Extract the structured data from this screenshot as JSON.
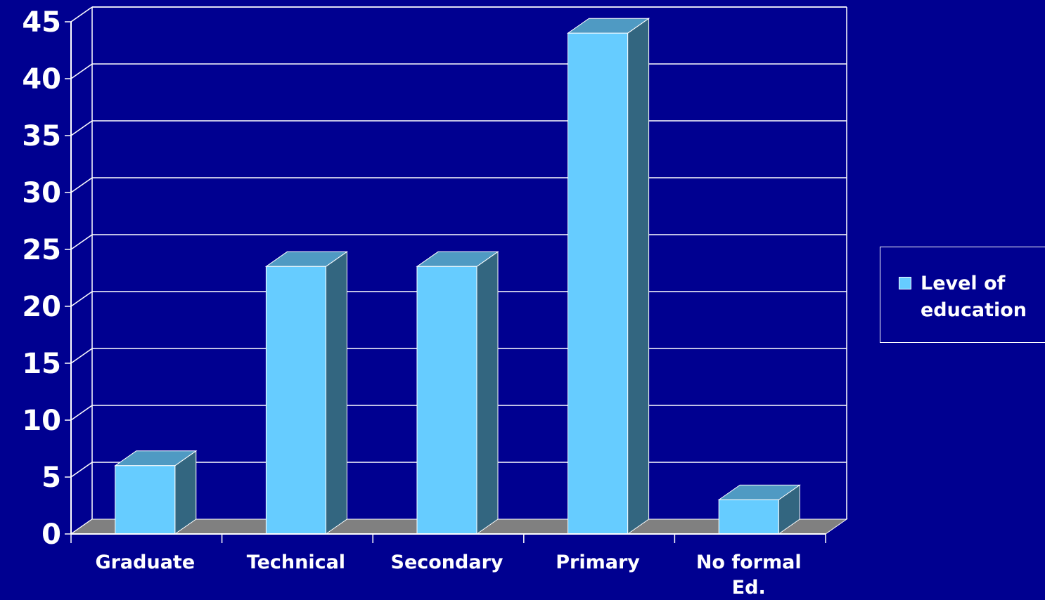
{
  "colors": {
    "background": "#000090",
    "bar_front": "#66ccff",
    "bar_top": "#4f9ac3",
    "bar_side": "#336680",
    "floor": "#808080",
    "gridline": "#ffffff",
    "text": "#ffffff"
  },
  "chart_data": {
    "type": "bar",
    "style": "3d-column",
    "categories": [
      "Graduate",
      "Technical",
      "Secondary",
      "Primary",
      "No formal Ed."
    ],
    "series": [
      {
        "name": "Level of education",
        "values": [
          6,
          23.5,
          23.5,
          44,
          3
        ]
      }
    ],
    "ylim": [
      0,
      45
    ],
    "yticks": [
      "0",
      "5",
      "10",
      "15",
      "20",
      "25",
      "30",
      "35",
      "40",
      "45"
    ],
    "grid": true,
    "legend_position": "right"
  }
}
